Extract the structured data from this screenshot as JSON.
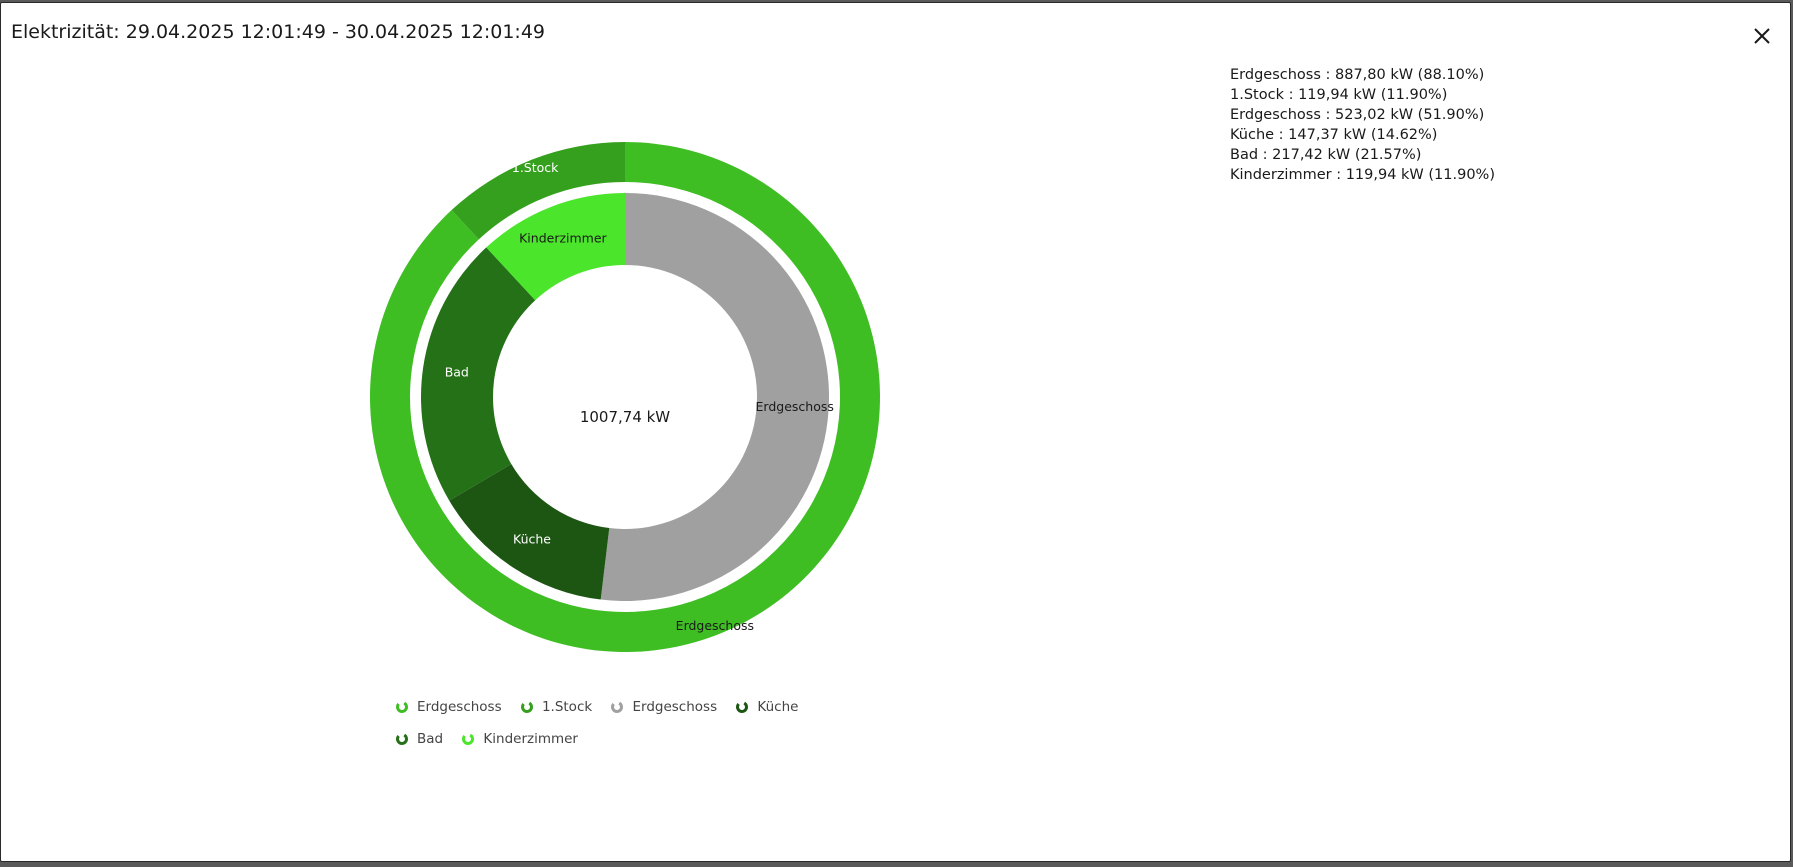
{
  "modal": {
    "title": "Elektrizität: 29.04.2025 12:01:49 - 30.04.2025 12:01:49"
  },
  "info_lines": [
    "Erdgeschoss : 887,80 kW (88.10%)",
    "1.Stock : 119,94 kW (11.90%)",
    "Erdgeschoss : 523,02 kW (51.90%)",
    "Küche : 147,37 kW (14.62%)",
    "Bad : 217,42 kW (21.57%)",
    "Kinderzimmer : 119,94 kW (11.90%)"
  ],
  "chart_data": {
    "type": "pie",
    "center_label": "1007,74 kW",
    "rings": [
      {
        "name": "outer",
        "slices": [
          {
            "label": "Erdgeschoss",
            "value": 887.8,
            "percent": 88.1,
            "color": "#3fbe24"
          },
          {
            "label": "1.Stock",
            "value": 119.94,
            "percent": 11.9,
            "color": "#35a01d"
          }
        ]
      },
      {
        "name": "inner",
        "slices": [
          {
            "label": "Erdgeschoss",
            "value": 523.02,
            "percent": 51.9,
            "color": "#a0a0a0"
          },
          {
            "label": "Küche",
            "value": 147.37,
            "percent": 14.62,
            "color": "#1d5613"
          },
          {
            "label": "Bad",
            "value": 217.42,
            "percent": 21.57,
            "color": "#247117"
          },
          {
            "label": "Kinderzimmer",
            "value": 119.94,
            "percent": 11.9,
            "color": "#4be52c"
          }
        ]
      }
    ],
    "label_colors": {
      "Erdgeschoss": "#1a1a1a",
      "1.Stock": "#ffffff",
      "Küche": "#ffffff",
      "Bad": "#ffffff",
      "Kinderzimmer": "#1a1a1a"
    }
  },
  "legend": [
    {
      "label": "Erdgeschoss",
      "color": "#3fbe24"
    },
    {
      "label": "1.Stock",
      "color": "#35a01d"
    },
    {
      "label": "Erdgeschoss",
      "color": "#a0a0a0"
    },
    {
      "label": "Küche",
      "color": "#1d5613"
    },
    {
      "label": "Bad",
      "color": "#247117"
    },
    {
      "label": "Kinderzimmer",
      "color": "#4be52c"
    }
  ],
  "icons": {
    "close": "close-icon",
    "legend": "donut-icon"
  }
}
